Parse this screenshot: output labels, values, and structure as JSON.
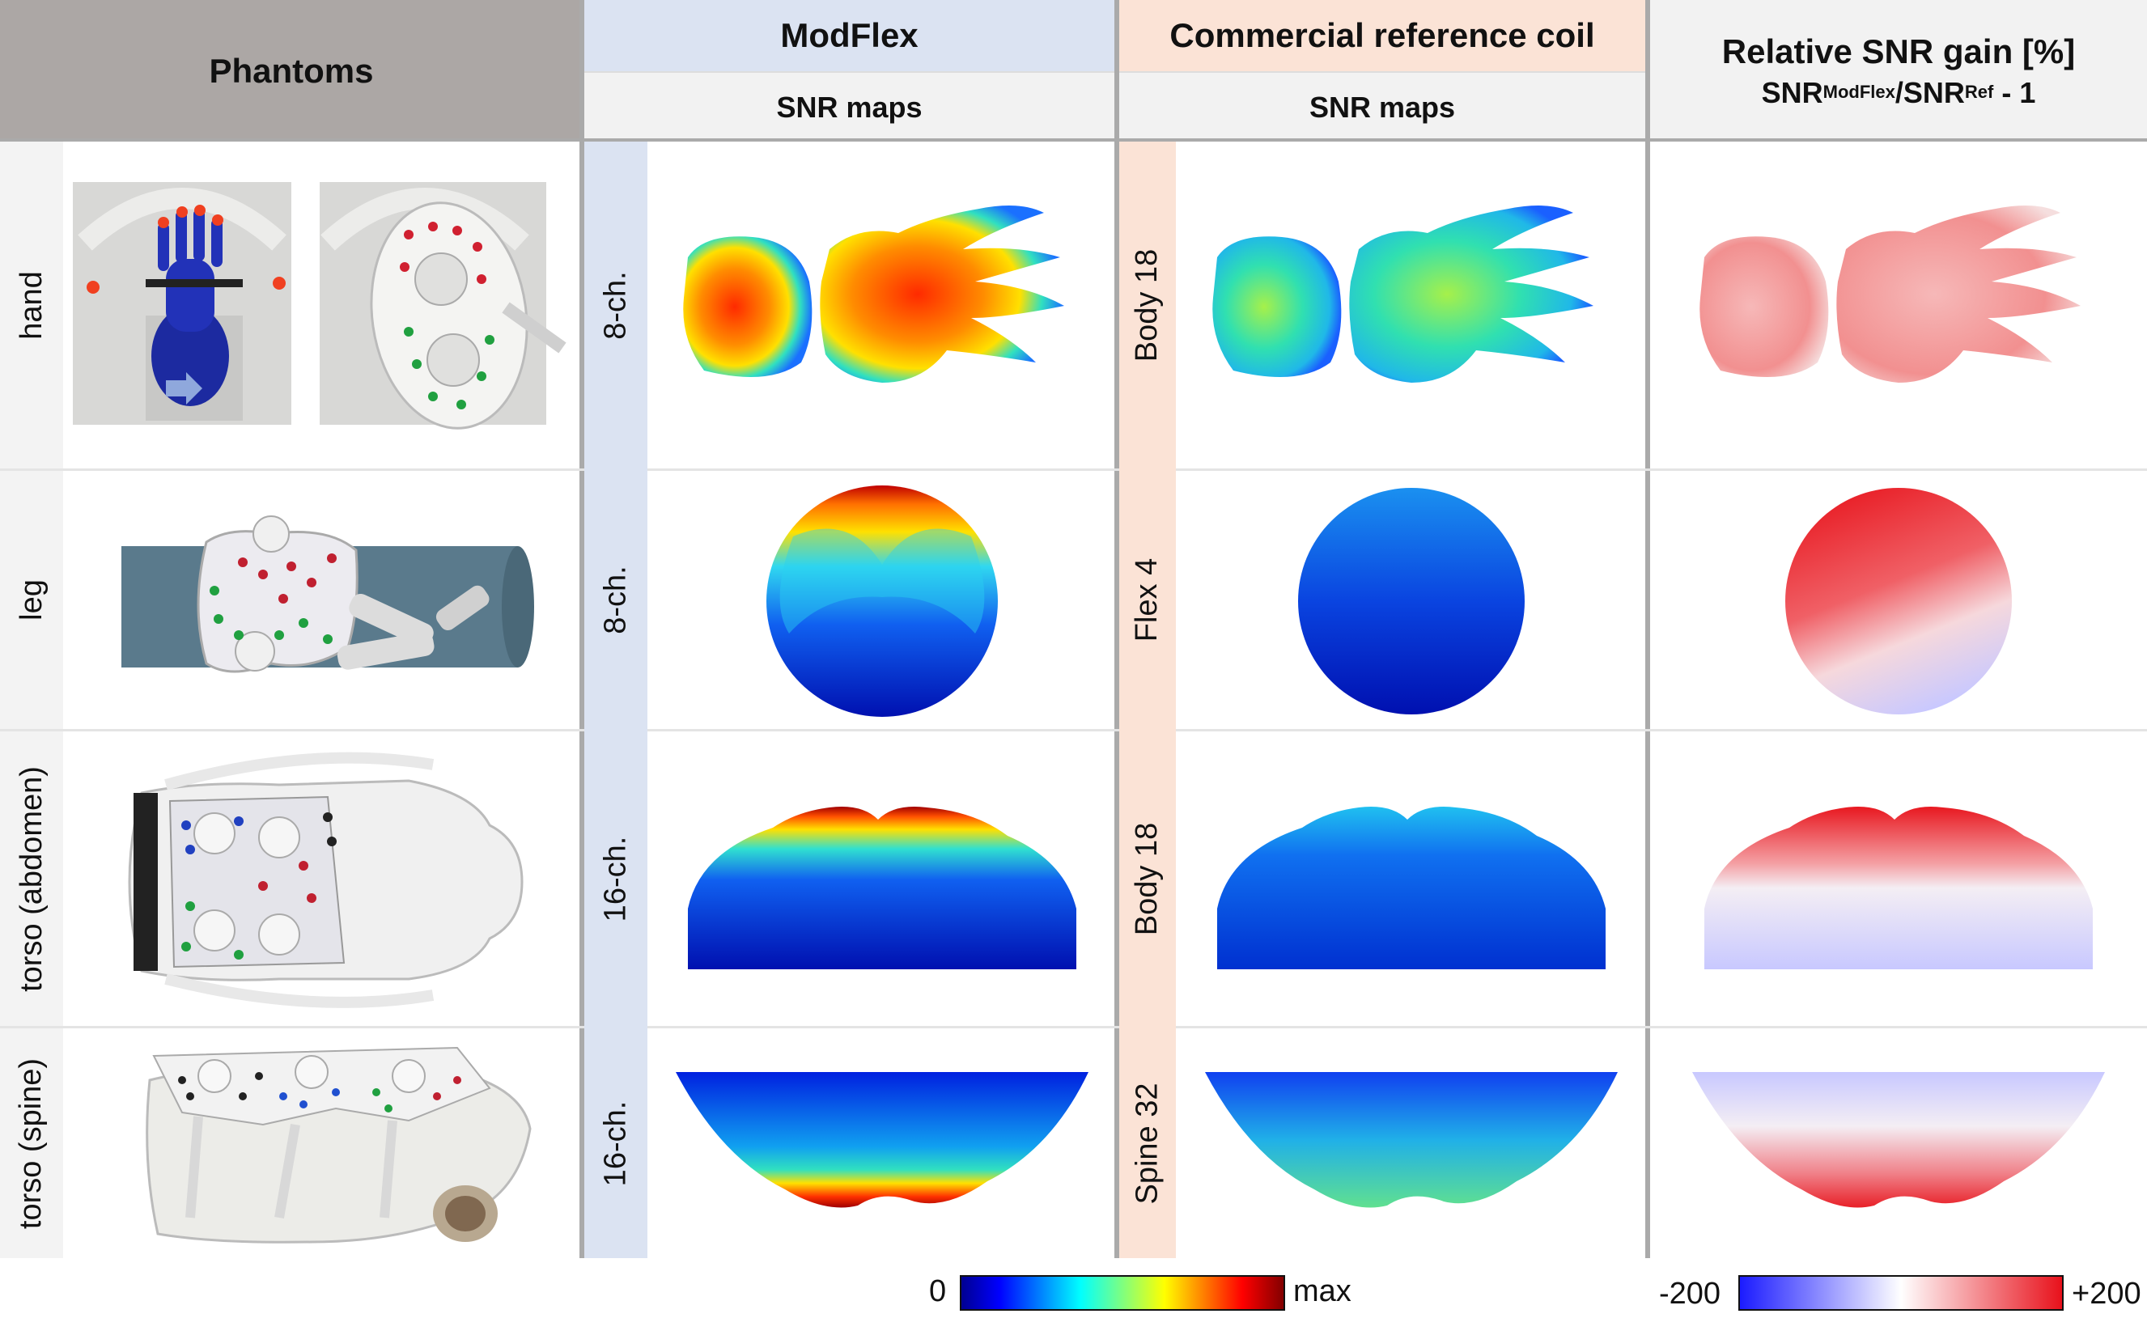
{
  "header": {
    "phantoms": "Phantoms",
    "modflex": "ModFlex",
    "modflex_sub": "SNR maps",
    "reference": "Commercial reference coil",
    "reference_sub": "SNR maps",
    "gain_title": "Relative SNR gain [%]",
    "gain_formula": {
      "a": "SNR",
      "a_sub": "ModFlex",
      "slash": "/",
      "b": "SNR",
      "b_sub": "Ref",
      "tail": " - 1"
    }
  },
  "rows": [
    {
      "phantom": "hand",
      "modflex_coil": "8-ch.",
      "reference_coil": "Body 18"
    },
    {
      "phantom": "leg",
      "modflex_coil": "8-ch.",
      "reference_coil": "Flex 4"
    },
    {
      "phantom": "torso (abdomen)",
      "modflex_coil": "16-ch.",
      "reference_coil": "Body 18"
    },
    {
      "phantom": "torso (spine)",
      "modflex_coil": "16-ch.",
      "reference_coil": "Spine 32"
    }
  ],
  "colorbars": {
    "snr": {
      "min_label": "0",
      "max_label": "max"
    },
    "gain": {
      "min_label": "-200",
      "max_label": "+200"
    }
  },
  "colors": {
    "header_phantoms_bg": "#aca7a5",
    "header_modflex_bg": "#dbe3f2",
    "header_reference_bg": "#fbe3d6",
    "header_sub_bg": "#f2f2f2",
    "modflex_band": "#dbe3f2",
    "reference_band": "#fbe3d6",
    "divider": "#aaaaaa"
  }
}
